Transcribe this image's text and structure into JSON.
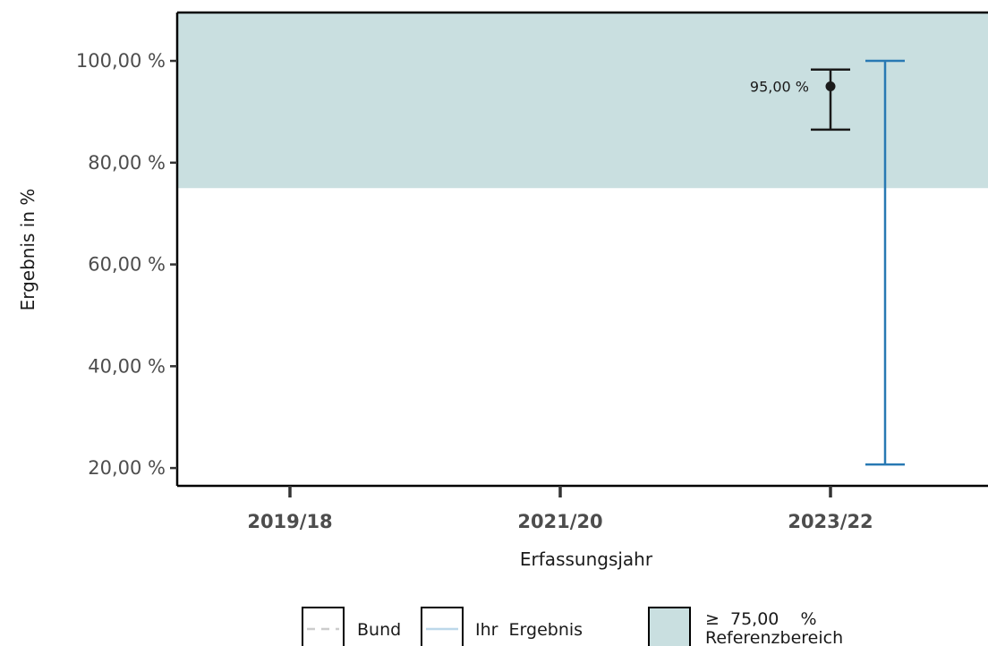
{
  "chart_data": {
    "type": "scatter",
    "xlabel": "Erfassungsjahr",
    "ylabel": "Ergebnis in %",
    "categories": [
      "2019/18",
      "2021/20",
      "2023/22"
    ],
    "ylim": [
      16.5,
      109.5
    ],
    "yticks": [
      20,
      40,
      60,
      80,
      100
    ],
    "ytick_labels": [
      "20,00 %",
      "40,00 %",
      "60,00 %",
      "80,00 %",
      "100,00 %"
    ],
    "reference_range": {
      "min": 75,
      "max": 100,
      "label_line1": "≥  75,00    %",
      "label_line2": "Referenzbereich",
      "color": "#c9dfe0"
    },
    "series": [
      {
        "name": "Ihr  Ergebnis",
        "color": "#1a1a1a",
        "points": [
          {
            "x": "2023/22",
            "y": 95.0,
            "ci_low": 86.5,
            "ci_high": 98.3,
            "label": "95,00 %"
          }
        ]
      },
      {
        "name": "Bund",
        "color": "#2879b3",
        "points": [
          {
            "x": "2023/22",
            "ci_low": 20.7,
            "ci_high": 100.0
          }
        ]
      }
    ],
    "legend": {
      "placement": "bottom",
      "items": [
        {
          "label": "Bund",
          "style": "dashed",
          "color": "#cccccc"
        },
        {
          "label": "Ihr  Ergebnis",
          "style": "solid",
          "color": "#bcd8ea",
          "text_color": "#2879b3"
        }
      ]
    }
  }
}
